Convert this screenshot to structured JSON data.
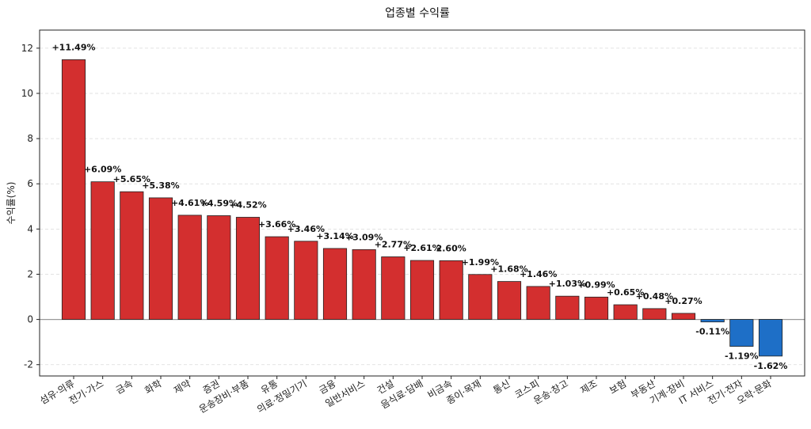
{
  "chart_data": {
    "type": "bar",
    "title": "업종별 수익률",
    "xlabel": "",
    "ylabel": "수익률(%)",
    "ylim": [
      -2.5,
      12.8
    ],
    "yticks": [
      -2,
      0,
      2,
      4,
      6,
      8,
      10,
      12
    ],
    "grid": true,
    "legend": "none",
    "categories": [
      "섬유·의류",
      "전기·가스",
      "금속",
      "화학",
      "제약",
      "증권",
      "운송장비·부품",
      "유통",
      "의료·정밀기기",
      "금융",
      "일반서비스",
      "건설",
      "음식료·담배",
      "비금속",
      "종이·목재",
      "통신",
      "코스피",
      "운송·창고",
      "제조",
      "보험",
      "부동산",
      "기계·장비",
      "IT 서비스",
      "전기·전자",
      "오락·문화"
    ],
    "values": [
      11.49,
      6.09,
      5.65,
      5.38,
      4.61,
      4.59,
      4.52,
      3.66,
      3.46,
      3.14,
      3.09,
      2.77,
      2.61,
      2.6,
      1.99,
      1.68,
      1.46,
      1.03,
      0.99,
      0.65,
      0.48,
      0.27,
      -0.11,
      -1.19,
      -1.62
    ],
    "labels": [
      "+11.49%",
      "+6.09%",
      "+5.65%",
      "+5.38%",
      "+4.61%",
      "+4.59%",
      "+4.52%",
      "+3.66%",
      "+3.46%",
      "+3.14%",
      "+3.09%",
      "+2.77%",
      "+2.61%",
      "2.60%",
      "+1.99%",
      "+1.68%",
      "+1.46%",
      "+1.03%",
      "+0.99%",
      "+0.65%",
      "+0.48%",
      "+0.27%",
      "-0.11%",
      "-1.19%",
      "-1.62%"
    ],
    "colors": {
      "positive": "#d32f2f",
      "negative": "#1e6fc7",
      "edge": "#222222",
      "zero_line": "#999999"
    }
  }
}
